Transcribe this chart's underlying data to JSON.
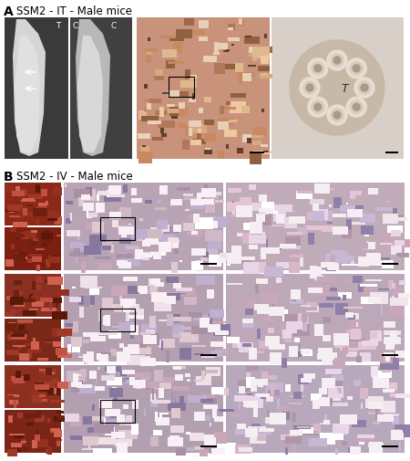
{
  "fig_width": 4.5,
  "fig_height": 5.06,
  "dpi": 100,
  "bg_color": "#ffffff",
  "panel_A_label": "A",
  "panel_B_label": "B",
  "title_A": "SSM2 - IT - Male mice",
  "title_B": "SSM2 - IV - Male mice",
  "xray_bg": "#3a3a3a",
  "xray_bone": "#b8b8b8",
  "xray_bone_light": "#d5d5d5",
  "histo_bone_bg": "#c8937a",
  "histo_zoom_bg": "#d0bfb0",
  "lung_macro_bg": "#7a2a18",
  "lung_histo_bg": "#b8a4b5",
  "lung_histo_zoom_bg": "#c0acbc",
  "white": "#ffffff",
  "black": "#000000",
  "gray_border": "#cccccc"
}
